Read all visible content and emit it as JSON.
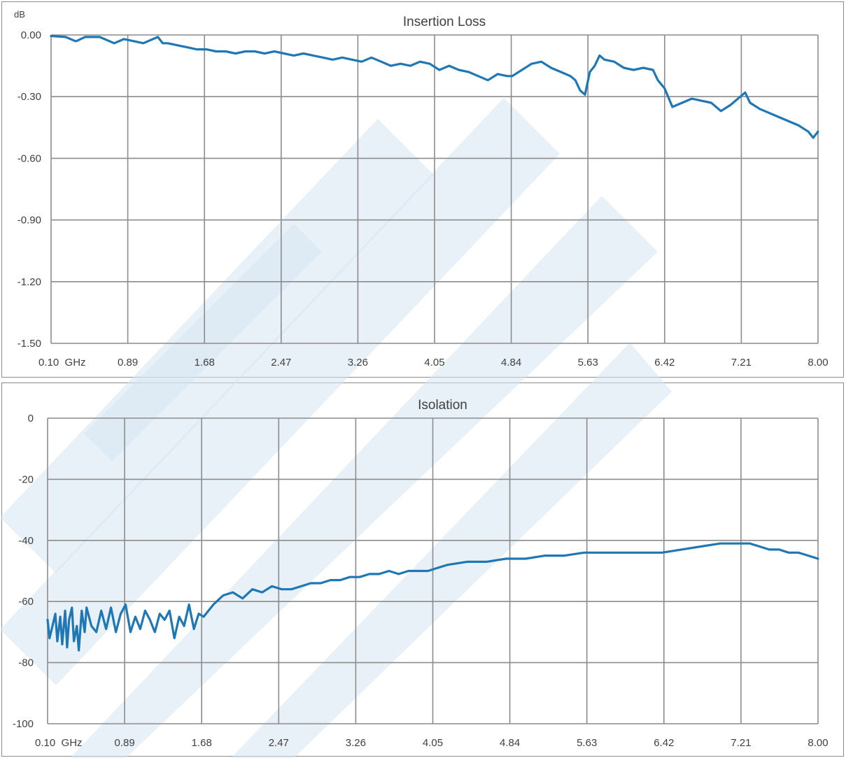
{
  "chart_data": [
    {
      "type": "line",
      "title": "Insertion Loss",
      "ylabel": "dB",
      "x_tick_labels": [
        "0.10  GHz",
        "0.89",
        "1.68",
        "2.47",
        "3.26",
        "4.05",
        "4.84",
        "5.63",
        "6.42",
        "7.21",
        "8.00"
      ],
      "y_tick_labels": [
        "0.00",
        "-0.30",
        "-0.60",
        "-0.90",
        "-1.20",
        "-1.50"
      ],
      "xlim": [
        0.1,
        8.0
      ],
      "ylim": [
        -1.5,
        0.0
      ],
      "grid": true,
      "line_color": "#1f77b4",
      "series": [
        {
          "x": [
            0.1,
            0.25,
            0.35,
            0.36,
            0.45,
            0.6,
            0.75,
            0.85,
            0.95,
            1.05,
            1.2,
            1.25,
            1.3,
            1.4,
            1.5,
            1.6,
            1.7,
            1.8,
            1.9,
            2.0,
            2.1,
            2.2,
            2.3,
            2.4,
            2.5,
            2.6,
            2.7,
            2.8,
            2.9,
            3.0,
            3.1,
            3.2,
            3.3,
            3.4,
            3.5,
            3.6,
            3.7,
            3.8,
            3.9,
            4.0,
            4.1,
            4.2,
            4.3,
            4.4,
            4.5,
            4.6,
            4.7,
            4.8,
            4.85,
            4.95,
            5.05,
            5.15,
            5.25,
            5.35,
            5.45,
            5.5,
            5.55,
            5.6,
            5.65,
            5.7,
            5.75,
            5.8,
            5.9,
            6.0,
            6.1,
            6.2,
            6.3,
            6.35,
            6.42,
            6.5,
            6.6,
            6.7,
            6.8,
            6.9,
            7.0,
            7.1,
            7.2,
            7.25,
            7.3,
            7.4,
            7.5,
            7.6,
            7.7,
            7.8,
            7.9,
            7.95,
            8.0
          ],
          "y": [
            -0.005,
            -0.01,
            -0.03,
            -0.03,
            -0.01,
            -0.01,
            -0.04,
            -0.02,
            -0.03,
            -0.04,
            -0.01,
            -0.04,
            -0.04,
            -0.05,
            -0.06,
            -0.07,
            -0.07,
            -0.08,
            -0.08,
            -0.09,
            -0.08,
            -0.08,
            -0.09,
            -0.08,
            -0.09,
            -0.1,
            -0.09,
            -0.1,
            -0.11,
            -0.12,
            -0.11,
            -0.12,
            -0.13,
            -0.11,
            -0.13,
            -0.15,
            -0.14,
            -0.15,
            -0.13,
            -0.14,
            -0.17,
            -0.15,
            -0.17,
            -0.18,
            -0.2,
            -0.22,
            -0.19,
            -0.2,
            -0.2,
            -0.17,
            -0.14,
            -0.13,
            -0.16,
            -0.18,
            -0.2,
            -0.22,
            -0.27,
            -0.29,
            -0.18,
            -0.15,
            -0.1,
            -0.12,
            -0.13,
            -0.16,
            -0.17,
            -0.16,
            -0.17,
            -0.22,
            -0.26,
            -0.35,
            -0.33,
            -0.31,
            -0.32,
            -0.33,
            -0.37,
            -0.34,
            -0.3,
            -0.28,
            -0.33,
            -0.36,
            -0.38,
            -0.4,
            -0.42,
            -0.44,
            -0.47,
            -0.5,
            -0.47
          ]
        }
      ]
    },
    {
      "type": "line",
      "title": "Isolation",
      "x_tick_labels": [
        "0.10  GHz",
        "0.89",
        "1.68",
        "2.47",
        "3.26",
        "4.05",
        "4.84",
        "5.63",
        "6.42",
        "7.21",
        "8.00"
      ],
      "y_tick_labels": [
        "0",
        "-20",
        "-40",
        "-60",
        "-80",
        "-100"
      ],
      "xlim": [
        0.1,
        8.0
      ],
      "ylim": [
        -100,
        0
      ],
      "grid": true,
      "line_color": "#1f77b4",
      "series": [
        {
          "x": [
            0.1,
            0.12,
            0.15,
            0.18,
            0.2,
            0.23,
            0.25,
            0.28,
            0.3,
            0.32,
            0.35,
            0.37,
            0.4,
            0.42,
            0.45,
            0.48,
            0.5,
            0.55,
            0.6,
            0.65,
            0.7,
            0.75,
            0.8,
            0.85,
            0.9,
            0.95,
            1.0,
            1.05,
            1.1,
            1.15,
            1.2,
            1.25,
            1.3,
            1.35,
            1.4,
            1.45,
            1.5,
            1.55,
            1.6,
            1.65,
            1.7,
            1.8,
            1.9,
            2.0,
            2.1,
            2.2,
            2.3,
            2.4,
            2.5,
            2.6,
            2.7,
            2.8,
            2.9,
            3.0,
            3.1,
            3.2,
            3.3,
            3.4,
            3.5,
            3.6,
            3.7,
            3.8,
            3.9,
            4.0,
            4.2,
            4.4,
            4.6,
            4.8,
            5.0,
            5.2,
            5.4,
            5.6,
            5.8,
            6.0,
            6.2,
            6.4,
            6.6,
            6.8,
            7.0,
            7.2,
            7.3,
            7.4,
            7.5,
            7.6,
            7.7,
            7.8,
            7.9,
            8.0
          ],
          "y": [
            -66,
            -72,
            -68,
            -64,
            -73,
            -65,
            -74,
            -63,
            -75,
            -66,
            -62,
            -73,
            -68,
            -76,
            -63,
            -70,
            -62,
            -68,
            -70,
            -63,
            -69,
            -62,
            -70,
            -64,
            -61,
            -70,
            -65,
            -69,
            -63,
            -66,
            -70,
            -64,
            -66,
            -63,
            -72,
            -65,
            -68,
            -61,
            -69,
            -64,
            -65,
            -61,
            -58,
            -57,
            -59,
            -56,
            -57,
            -55,
            -56,
            -56,
            -55,
            -54,
            -54,
            -53,
            -53,
            -52,
            -52,
            -51,
            -51,
            -50,
            -51,
            -50,
            -50,
            -50,
            -48,
            -47,
            -47,
            -46,
            -46,
            -45,
            -45,
            -44,
            -44,
            -44,
            -44,
            -44,
            -43,
            -42,
            -41,
            -41,
            -41,
            -42,
            -43,
            -43,
            -44,
            -44,
            -45,
            -46
          ]
        }
      ]
    }
  ]
}
